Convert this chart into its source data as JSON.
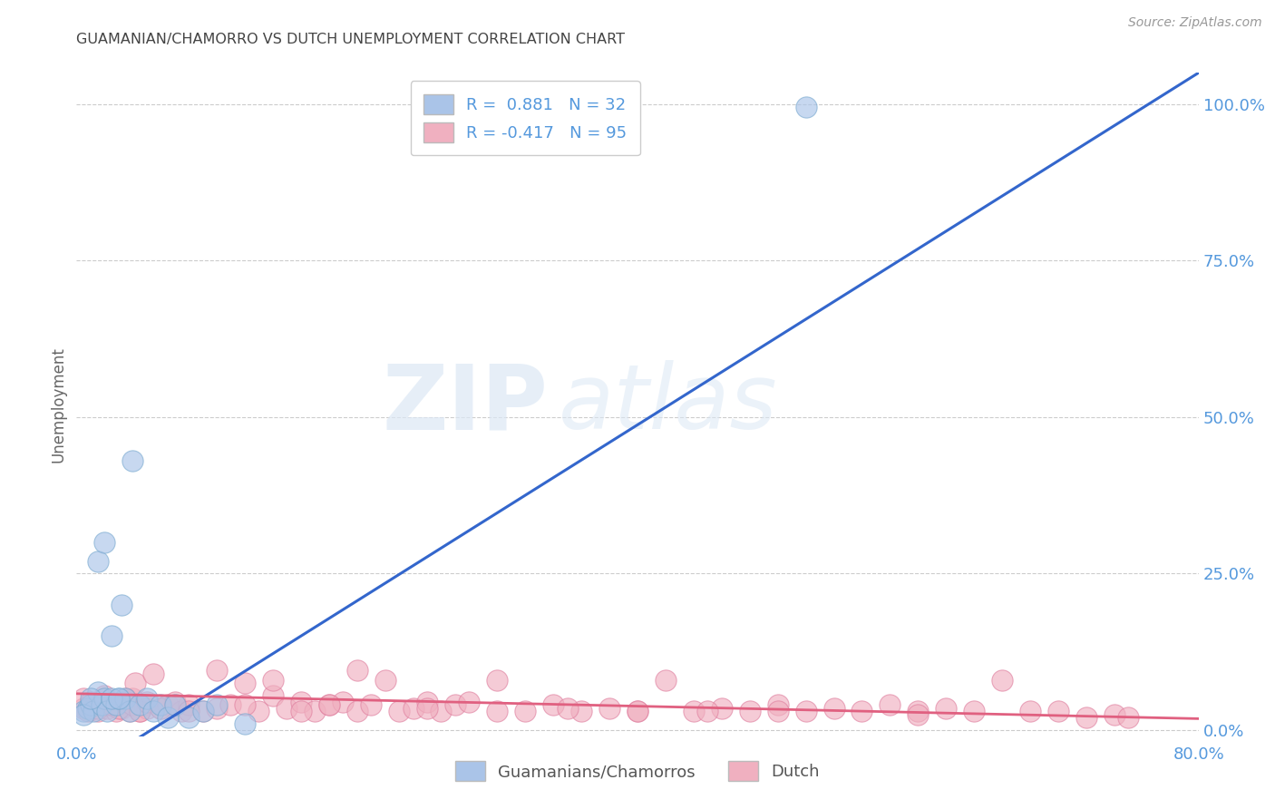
{
  "title": "GUAMANIAN/CHAMORRO VS DUTCH UNEMPLOYMENT CORRELATION CHART",
  "source": "Source: ZipAtlas.com",
  "ylabel": "Unemployment",
  "right_yticks": [
    0.0,
    0.25,
    0.5,
    0.75,
    1.0
  ],
  "right_ytick_labels": [
    "0.0%",
    "25.0%",
    "50.0%",
    "75.0%",
    "100.0%"
  ],
  "xlim": [
    0.0,
    0.8
  ],
  "ylim": [
    -0.01,
    1.05
  ],
  "blue_R": 0.881,
  "blue_N": 32,
  "pink_R": -0.417,
  "pink_N": 95,
  "blue_color": "#aac4e8",
  "blue_edge_color": "#7aaad0",
  "blue_line_color": "#3366cc",
  "pink_color": "#f0b0c0",
  "pink_edge_color": "#e080a0",
  "pink_line_color": "#e06080",
  "legend_label_blue": "Guamanians/Chamorros",
  "legend_label_pink": "Dutch",
  "watermark_zip": "ZIP",
  "watermark_atlas": "atlas",
  "title_color": "#444444",
  "axis_tick_color": "#5599dd",
  "blue_scatter_x": [
    0.005,
    0.008,
    0.01,
    0.012,
    0.015,
    0.018,
    0.02,
    0.022,
    0.025,
    0.028,
    0.03,
    0.032,
    0.035,
    0.038,
    0.04,
    0.045,
    0.05,
    0.055,
    0.06,
    0.065,
    0.07,
    0.08,
    0.09,
    0.1,
    0.005,
    0.01,
    0.015,
    0.02,
    0.025,
    0.03,
    0.12,
    0.52
  ],
  "blue_scatter_y": [
    0.03,
    0.035,
    0.04,
    0.03,
    0.06,
    0.04,
    0.05,
    0.03,
    0.15,
    0.04,
    0.05,
    0.2,
    0.05,
    0.03,
    0.43,
    0.04,
    0.05,
    0.03,
    0.04,
    0.02,
    0.04,
    0.02,
    0.03,
    0.04,
    0.025,
    0.05,
    0.27,
    0.3,
    0.05,
    0.05,
    0.01,
    0.995
  ],
  "pink_scatter_x": [
    0.005,
    0.008,
    0.01,
    0.012,
    0.015,
    0.018,
    0.02,
    0.022,
    0.025,
    0.028,
    0.03,
    0.032,
    0.035,
    0.038,
    0.04,
    0.042,
    0.045,
    0.048,
    0.05,
    0.055,
    0.06,
    0.065,
    0.07,
    0.075,
    0.08,
    0.09,
    0.1,
    0.11,
    0.12,
    0.13,
    0.14,
    0.15,
    0.16,
    0.17,
    0.18,
    0.19,
    0.2,
    0.21,
    0.22,
    0.23,
    0.24,
    0.25,
    0.26,
    0.27,
    0.28,
    0.3,
    0.32,
    0.34,
    0.36,
    0.38,
    0.4,
    0.42,
    0.44,
    0.46,
    0.48,
    0.5,
    0.52,
    0.54,
    0.56,
    0.58,
    0.6,
    0.62,
    0.64,
    0.66,
    0.68,
    0.7,
    0.72,
    0.74,
    0.75,
    0.005,
    0.01,
    0.015,
    0.02,
    0.025,
    0.03,
    0.035,
    0.04,
    0.045,
    0.05,
    0.06,
    0.07,
    0.08,
    0.1,
    0.12,
    0.14,
    0.16,
    0.18,
    0.2,
    0.25,
    0.3,
    0.35,
    0.4,
    0.45,
    0.5,
    0.6
  ],
  "pink_scatter_y": [
    0.035,
    0.03,
    0.04,
    0.035,
    0.03,
    0.045,
    0.05,
    0.035,
    0.04,
    0.03,
    0.04,
    0.035,
    0.045,
    0.03,
    0.05,
    0.075,
    0.03,
    0.04,
    0.035,
    0.09,
    0.035,
    0.04,
    0.045,
    0.03,
    0.04,
    0.03,
    0.035,
    0.04,
    0.075,
    0.03,
    0.055,
    0.035,
    0.045,
    0.03,
    0.04,
    0.045,
    0.03,
    0.04,
    0.08,
    0.03,
    0.035,
    0.045,
    0.03,
    0.04,
    0.045,
    0.08,
    0.03,
    0.04,
    0.03,
    0.035,
    0.03,
    0.08,
    0.03,
    0.035,
    0.03,
    0.04,
    0.03,
    0.035,
    0.03,
    0.04,
    0.03,
    0.035,
    0.03,
    0.08,
    0.03,
    0.03,
    0.02,
    0.025,
    0.02,
    0.05,
    0.045,
    0.035,
    0.055,
    0.04,
    0.035,
    0.05,
    0.04,
    0.03,
    0.045,
    0.035,
    0.04,
    0.03,
    0.095,
    0.04,
    0.08,
    0.03,
    0.04,
    0.095,
    0.035,
    0.03,
    0.035,
    0.03,
    0.03,
    0.03,
    0.025
  ],
  "blue_line_x": [
    0.0,
    0.8
  ],
  "blue_line_y": [
    -0.075,
    1.05
  ],
  "pink_line_x": [
    0.0,
    0.8
  ],
  "pink_line_y": [
    0.058,
    0.018
  ]
}
